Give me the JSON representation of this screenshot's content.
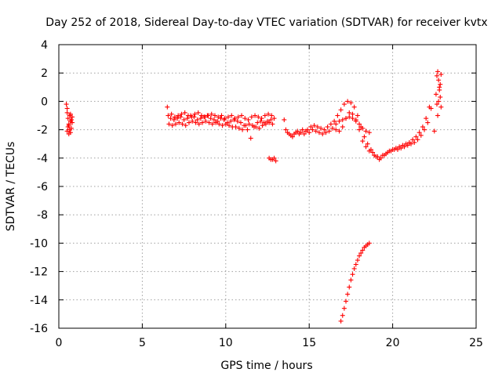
{
  "chart_data": {
    "type": "scatter",
    "title": "Day 252 of 2018, Sidereal Day-to-day VTEC variation (SDTVAR) for receiver kvtx",
    "xlabel": "GPS time / hours",
    "ylabel": "SDTVAR / TECUs",
    "xlim": [
      0,
      25
    ],
    "ylim": [
      -16,
      4
    ],
    "xticks": [
      0,
      5,
      10,
      15,
      20,
      25
    ],
    "yticks": [
      -16,
      -14,
      -12,
      -10,
      -8,
      -6,
      -4,
      -2,
      0,
      2,
      4
    ],
    "grid": true,
    "marker": "+",
    "series": [
      {
        "name": "SDTVAR",
        "color": "#ff0000",
        "x": [
          0.45,
          0.5,
          0.55,
          0.6,
          0.65,
          0.7,
          0.75,
          0.8,
          0.5,
          0.6,
          0.7,
          0.8,
          0.55,
          0.65,
          0.75,
          0.5,
          0.6,
          0.7,
          6.5,
          6.7,
          6.9,
          7.1,
          7.3,
          7.5,
          7.7,
          7.9,
          8.1,
          8.3,
          8.5,
          8.7,
          8.9,
          9.1,
          9.3,
          9.5,
          9.7,
          9.9,
          10.1,
          10.3,
          10.5,
          10.7,
          10.9,
          11.1,
          11.3,
          11.5,
          11.7,
          11.9,
          12.1,
          12.3,
          12.5,
          12.7,
          12.9,
          6.6,
          6.8,
          7.0,
          7.2,
          7.4,
          7.6,
          7.8,
          8.0,
          8.2,
          8.4,
          8.6,
          8.8,
          9.0,
          9.2,
          9.4,
          9.6,
          9.8,
          10.0,
          10.2,
          10.4,
          10.6,
          10.8,
          11.0,
          11.2,
          11.4,
          11.6,
          11.8,
          12.0,
          12.2,
          12.4,
          12.6,
          12.8,
          6.55,
          6.75,
          6.95,
          7.15,
          7.35,
          7.55,
          7.75,
          7.95,
          8.15,
          8.35,
          8.55,
          8.75,
          8.95,
          9.15,
          9.35,
          9.55,
          9.75,
          9.95,
          10.15,
          10.35,
          10.55,
          10.75,
          10.95,
          11.15,
          11.35,
          11.55,
          11.75,
          11.95,
          12.15,
          12.35,
          12.55,
          12.75,
          12.6,
          12.7,
          12.8,
          12.9,
          13.0,
          13.5,
          13.7,
          13.9,
          14.1,
          14.3,
          14.5,
          14.7,
          14.9,
          15.1,
          15.3,
          15.5,
          15.7,
          15.9,
          16.1,
          16.3,
          16.5,
          16.7,
          16.9,
          17.1,
          17.3,
          17.5,
          17.7,
          17.9,
          18.1,
          18.3,
          18.5,
          18.7,
          18.9,
          19.1,
          19.3,
          19.5,
          19.7,
          19.9,
          20.1,
          20.3,
          20.5,
          20.7,
          20.9,
          21.1,
          21.3,
          21.5,
          21.7,
          21.9,
          22.1,
          22.3,
          13.6,
          13.8,
          14.0,
          14.2,
          14.4,
          14.6,
          14.8,
          15.0,
          15.2,
          15.4,
          15.6,
          15.8,
          16.0,
          16.2,
          16.4,
          16.6,
          16.8,
          17.0,
          17.2,
          17.4,
          17.6,
          17.8,
          18.0,
          18.2,
          18.4,
          18.6,
          18.8,
          19.0,
          19.2,
          19.4,
          19.6,
          19.8,
          20.0,
          20.2,
          20.4,
          20.6,
          20.8,
          21.0,
          21.2,
          21.4,
          21.6,
          21.8,
          22.0,
          22.2,
          16.6,
          16.8,
          17.0,
          17.2,
          17.4,
          17.6,
          17.8,
          18.0,
          18.2,
          18.4,
          18.6,
          16.9,
          17.0,
          17.1,
          17.2,
          17.3,
          17.4,
          17.5,
          17.6,
          17.7,
          17.8,
          17.9,
          18.0,
          18.1,
          18.2,
          18.3,
          18.4,
          18.5,
          18.6,
          22.6,
          22.65,
          22.7,
          22.75,
          22.8,
          22.85,
          22.9,
          22.7,
          22.8,
          22.9,
          22.65,
          22.75,
          22.85,
          22.5
        ],
        "y": [
          -0.2,
          -0.8,
          -1.2,
          -1.6,
          -1.0,
          -1.4,
          -1.9,
          -1.1,
          -2.1,
          -2.3,
          -0.9,
          -1.5,
          -1.8,
          -2.0,
          -1.3,
          -0.5,
          -1.7,
          -2.2,
          -0.4,
          -1.2,
          -1.3,
          -1.2,
          -1.1,
          -1.3,
          -1.2,
          -1.0,
          -1.1,
          -1.3,
          -1.2,
          -1.1,
          -1.0,
          -1.2,
          -1.3,
          -1.4,
          -1.2,
          -1.3,
          -1.5,
          -1.4,
          -1.3,
          -1.4,
          -1.5,
          -1.7,
          -2.0,
          -2.6,
          -1.8,
          -1.5,
          -1.4,
          -1.5,
          -1.4,
          -1.3,
          -1.2,
          -1.6,
          -1.7,
          -1.6,
          -1.5,
          -1.6,
          -1.7,
          -1.5,
          -1.4,
          -1.5,
          -1.6,
          -1.5,
          -1.4,
          -1.5,
          -1.6,
          -1.5,
          -1.6,
          -1.7,
          -1.6,
          -1.7,
          -1.8,
          -1.8,
          -1.9,
          -2.0,
          -1.7,
          -1.6,
          -1.7,
          -1.8,
          -1.9,
          -1.7,
          -1.6,
          -1.5,
          -1.6,
          -1.0,
          -0.9,
          -1.1,
          -1.0,
          -0.9,
          -0.8,
          -1.0,
          -1.1,
          -0.9,
          -0.8,
          -1.0,
          -1.1,
          -1.0,
          -0.9,
          -1.0,
          -1.1,
          -1.0,
          -1.2,
          -1.1,
          -1.0,
          -1.2,
          -1.1,
          -1.0,
          -1.2,
          -1.3,
          -1.1,
          -1.0,
          -1.1,
          -1.2,
          -1.0,
          -0.9,
          -1.0,
          -4.0,
          -4.1,
          -4.1,
          -4.0,
          -4.2,
          -1.3,
          -2.2,
          -2.4,
          -2.3,
          -2.1,
          -2.2,
          -2.3,
          -2.0,
          -1.8,
          -1.7,
          -1.8,
          -1.9,
          -2.0,
          -1.8,
          -1.6,
          -1.4,
          -1.0,
          -0.6,
          -0.2,
          0.0,
          -0.1,
          -0.4,
          -1.0,
          -1.8,
          -2.5,
          -3.0,
          -3.4,
          -3.8,
          -3.9,
          -4.0,
          -3.8,
          -3.6,
          -3.5,
          -3.4,
          -3.4,
          -3.3,
          -3.2,
          -3.1,
          -3.0,
          -2.9,
          -2.7,
          -2.4,
          -2.0,
          -1.5,
          -0.5,
          -2.0,
          -2.3,
          -2.5,
          -2.2,
          -2.3,
          -2.0,
          -2.1,
          -2.2,
          -2.0,
          -2.1,
          -2.2,
          -2.3,
          -2.2,
          -2.1,
          -1.9,
          -2.0,
          -2.1,
          -1.8,
          -1.2,
          -0.8,
          -0.9,
          -1.3,
          -2.0,
          -2.8,
          -3.2,
          -3.5,
          -3.6,
          -3.9,
          -4.1,
          -3.8,
          -3.7,
          -3.5,
          -3.4,
          -3.3,
          -3.2,
          -3.1,
          -3.0,
          -2.9,
          -2.7,
          -2.5,
          -2.2,
          -1.8,
          -1.2,
          -0.4,
          -1.6,
          -1.4,
          -1.3,
          -1.2,
          -1.1,
          -1.2,
          -1.4,
          -1.6,
          -1.9,
          -2.1,
          -2.2,
          -15.5,
          -15.1,
          -14.6,
          -14.1,
          -13.6,
          -13.1,
          -12.6,
          -12.2,
          -11.8,
          -11.5,
          -11.2,
          -10.9,
          -10.7,
          -10.5,
          -10.3,
          -10.2,
          -10.1,
          -10.0,
          0.5,
          1.8,
          2.1,
          1.5,
          1.0,
          0.3,
          -0.4,
          -1.0,
          0.8,
          1.9,
          -0.2,
          0.0,
          1.2,
          -2.1
        ]
      }
    ]
  }
}
